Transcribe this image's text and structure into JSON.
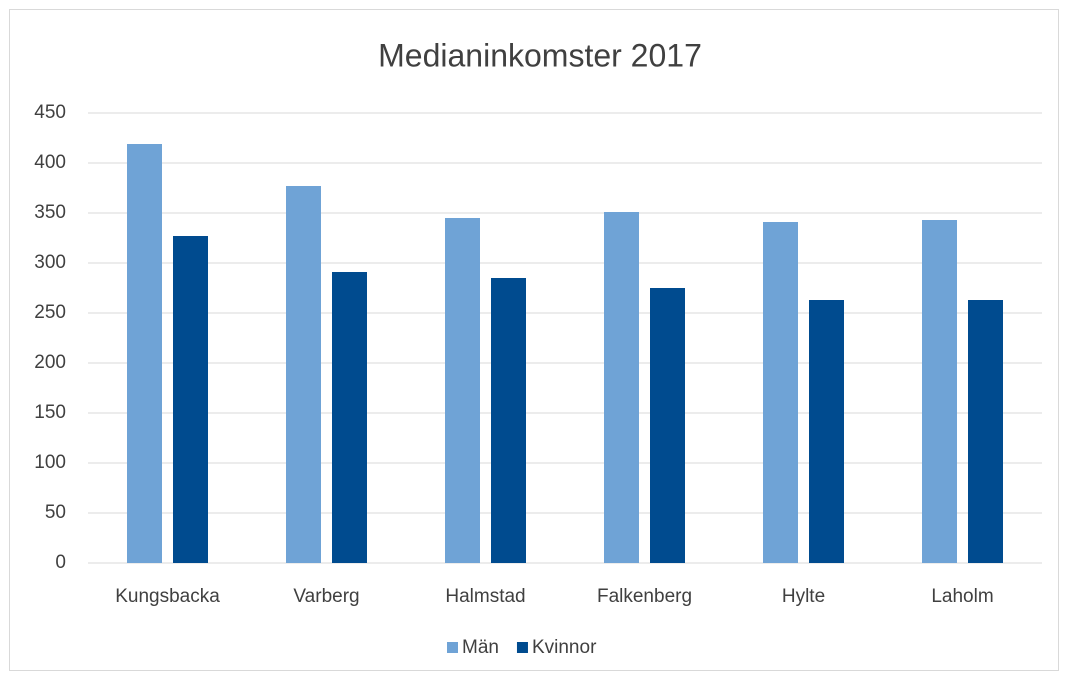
{
  "chart_data": {
    "type": "bar",
    "title": "Medianinkomster 2017",
    "categories": [
      "Kungsbacka",
      "Varberg",
      "Halmstad",
      "Falkenberg",
      "Hylte",
      "Laholm"
    ],
    "series": [
      {
        "name": "Män",
        "color": "#6fa3d6",
        "values": [
          419,
          377,
          345,
          351,
          341,
          343
        ]
      },
      {
        "name": "Kvinnor",
        "color": "#004b8f",
        "values": [
          327,
          291,
          285,
          275,
          263,
          263
        ]
      }
    ],
    "ylim": [
      0,
      450
    ],
    "yticks": [
      0,
      50,
      100,
      150,
      200,
      250,
      300,
      350,
      400,
      450
    ],
    "grid": true,
    "legend": "bottom"
  }
}
